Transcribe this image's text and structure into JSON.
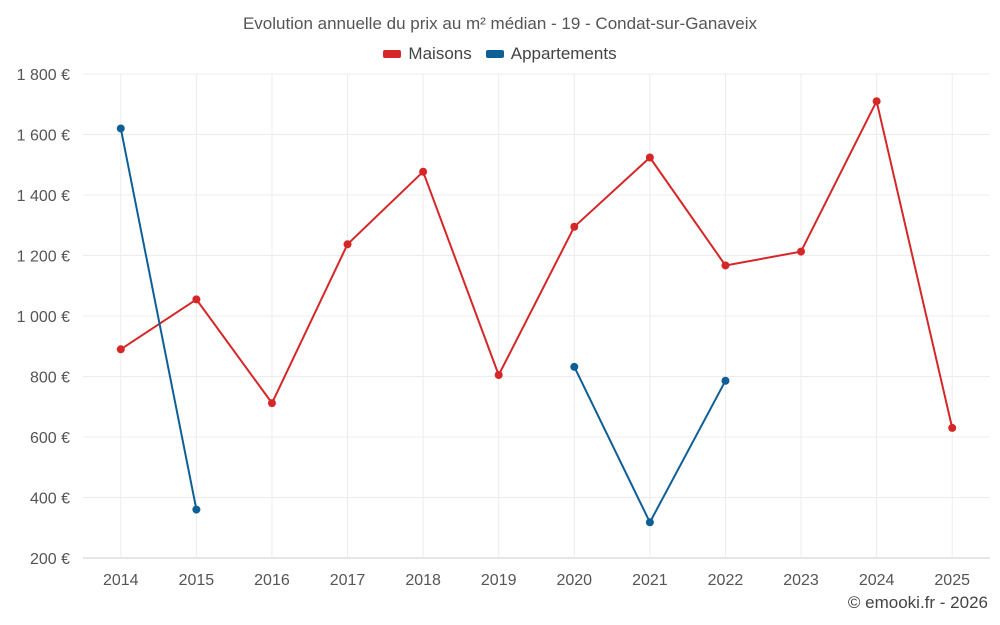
{
  "chart_data": {
    "type": "line",
    "title": "Evolution annuelle du prix au m² médian - 19 - Condat-sur-Ganaveix",
    "xlabel": "",
    "ylabel": "",
    "categories": [
      "2014",
      "2015",
      "2016",
      "2017",
      "2018",
      "2019",
      "2020",
      "2021",
      "2022",
      "2023",
      "2024",
      "2025"
    ],
    "ylim": [
      200,
      1800
    ],
    "yticks": [
      200,
      400,
      600,
      800,
      1000,
      1200,
      1400,
      1600,
      1800
    ],
    "ytick_labels": [
      "200 €",
      "400 €",
      "600 €",
      "800 €",
      "1 000 €",
      "1 200 €",
      "1 400 €",
      "1 600 €",
      "1 800 €"
    ],
    "grid": true,
    "legend_position": "top-center",
    "series": [
      {
        "name": "Maisons",
        "color": "#d62728",
        "values": [
          890,
          1055,
          712,
          1237,
          1477,
          805,
          1295,
          1524,
          1167,
          1213,
          1710,
          630
        ]
      },
      {
        "name": "Appartements",
        "color": "#0e5f96",
        "values": [
          1620,
          360,
          null,
          null,
          null,
          null,
          832,
          318,
          786,
          null,
          null,
          null
        ]
      }
    ]
  },
  "credit": "© emooki.fr - 2026"
}
